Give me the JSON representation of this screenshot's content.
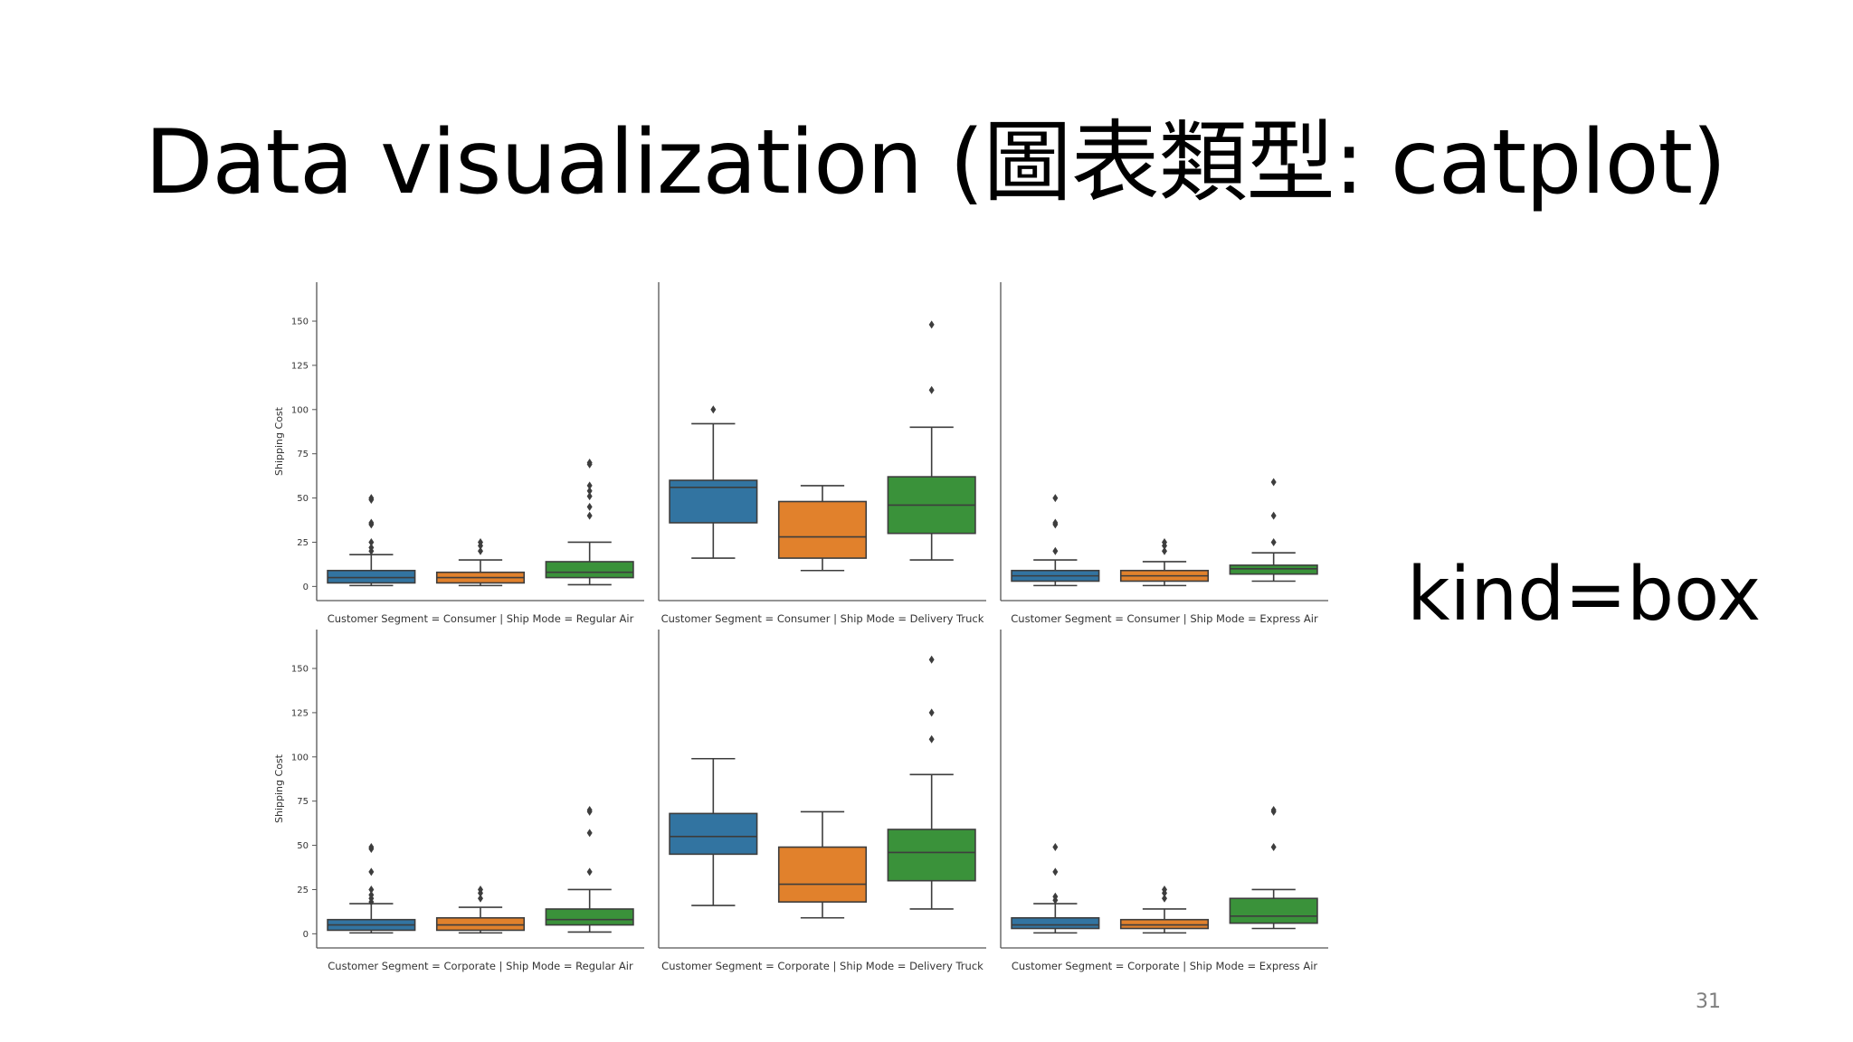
{
  "slide": {
    "title": "Data visualization (圖表類型: catplot)",
    "side_label": "kind=box",
    "page_number": "31"
  },
  "colors": {
    "Consumer_box": "#3274a1",
    "Corporate_box": "#e1812c",
    "Home_Office_box": "#3a923a",
    "line": "#3d3d3d",
    "axis": "#555555"
  },
  "chart_data": {
    "type": "box",
    "ylabel": "Shipping Cost",
    "ylim": [
      -8,
      172
    ],
    "yticks": [
      0,
      25,
      50,
      75,
      100,
      125,
      150
    ],
    "box_colors": [
      "#3274a1",
      "#e1812c",
      "#3a923a"
    ],
    "facets": [
      {
        "title": "Customer Segment = Consumer | Ship Mode = Regular Air",
        "boxes": [
          {
            "q1": 2,
            "median": 5,
            "q3": 9,
            "whisker_low": 0.5,
            "whisker_high": 18,
            "outliers": [
              20,
              22,
              25,
              35,
              36,
              49,
              50
            ]
          },
          {
            "q1": 2,
            "median": 5,
            "q3": 8,
            "whisker_low": 0.5,
            "whisker_high": 15,
            "outliers": [
              20,
              23,
              25
            ]
          },
          {
            "q1": 5,
            "median": 8,
            "q3": 14,
            "whisker_low": 1,
            "whisker_high": 25,
            "outliers": [
              40,
              45,
              51,
              54,
              57,
              69,
              70
            ]
          }
        ]
      },
      {
        "title": "Customer Segment = Consumer | Ship Mode = Delivery Truck",
        "boxes": [
          {
            "q1": 36,
            "median": 56,
            "q3": 60,
            "whisker_low": 16,
            "whisker_high": 92,
            "outliers": [
              100
            ]
          },
          {
            "q1": 16,
            "median": 28,
            "q3": 48,
            "whisker_low": 9,
            "whisker_high": 57,
            "outliers": []
          },
          {
            "q1": 30,
            "median": 46,
            "q3": 62,
            "whisker_low": 15,
            "whisker_high": 90,
            "outliers": [
              111,
              148
            ]
          }
        ]
      },
      {
        "title": "Customer Segment = Consumer | Ship Mode = Express Air",
        "boxes": [
          {
            "q1": 3,
            "median": 6,
            "q3": 9,
            "whisker_low": 0.5,
            "whisker_high": 15,
            "outliers": [
              20,
              35,
              36,
              50
            ]
          },
          {
            "q1": 3,
            "median": 6,
            "q3": 9,
            "whisker_low": 0.5,
            "whisker_high": 14,
            "outliers": [
              20,
              23,
              25
            ]
          },
          {
            "q1": 7,
            "median": 10,
            "q3": 12,
            "whisker_low": 3,
            "whisker_high": 19,
            "outliers": [
              25,
              40,
              59
            ]
          }
        ]
      },
      {
        "title": "Customer Segment = Corporate | Ship Mode = Regular Air",
        "boxes": [
          {
            "q1": 2,
            "median": 5,
            "q3": 8,
            "whisker_low": 0.5,
            "whisker_high": 17,
            "outliers": [
              18,
              20,
              22,
              25,
              35,
              48,
              49
            ]
          },
          {
            "q1": 2,
            "median": 5,
            "q3": 9,
            "whisker_low": 0.5,
            "whisker_high": 15,
            "outliers": [
              20,
              23,
              25
            ]
          },
          {
            "q1": 5,
            "median": 8,
            "q3": 14,
            "whisker_low": 1,
            "whisker_high": 25,
            "outliers": [
              35,
              57,
              69,
              70
            ]
          }
        ]
      },
      {
        "title": "Customer Segment = Corporate | Ship Mode = Delivery Truck",
        "boxes": [
          {
            "q1": 45,
            "median": 55,
            "q3": 68,
            "whisker_low": 16,
            "whisker_high": 99,
            "outliers": []
          },
          {
            "q1": 18,
            "median": 28,
            "q3": 49,
            "whisker_low": 9,
            "whisker_high": 69,
            "outliers": []
          },
          {
            "q1": 30,
            "median": 46,
            "q3": 59,
            "whisker_low": 14,
            "whisker_high": 90,
            "outliers": [
              110,
              125,
              155
            ]
          }
        ]
      },
      {
        "title": "Customer Segment = Corporate | Ship Mode = Express Air",
        "boxes": [
          {
            "q1": 3,
            "median": 5,
            "q3": 9,
            "whisker_low": 0.5,
            "whisker_high": 17,
            "outliers": [
              19,
              21,
              35,
              49
            ]
          },
          {
            "q1": 3,
            "median": 5,
            "q3": 8,
            "whisker_low": 0.5,
            "whisker_high": 14,
            "outliers": [
              20,
              23,
              25
            ]
          },
          {
            "q1": 6,
            "median": 10,
            "q3": 20,
            "whisker_low": 3,
            "whisker_high": 25,
            "outliers": [
              49,
              69,
              70
            ]
          }
        ]
      }
    ]
  }
}
